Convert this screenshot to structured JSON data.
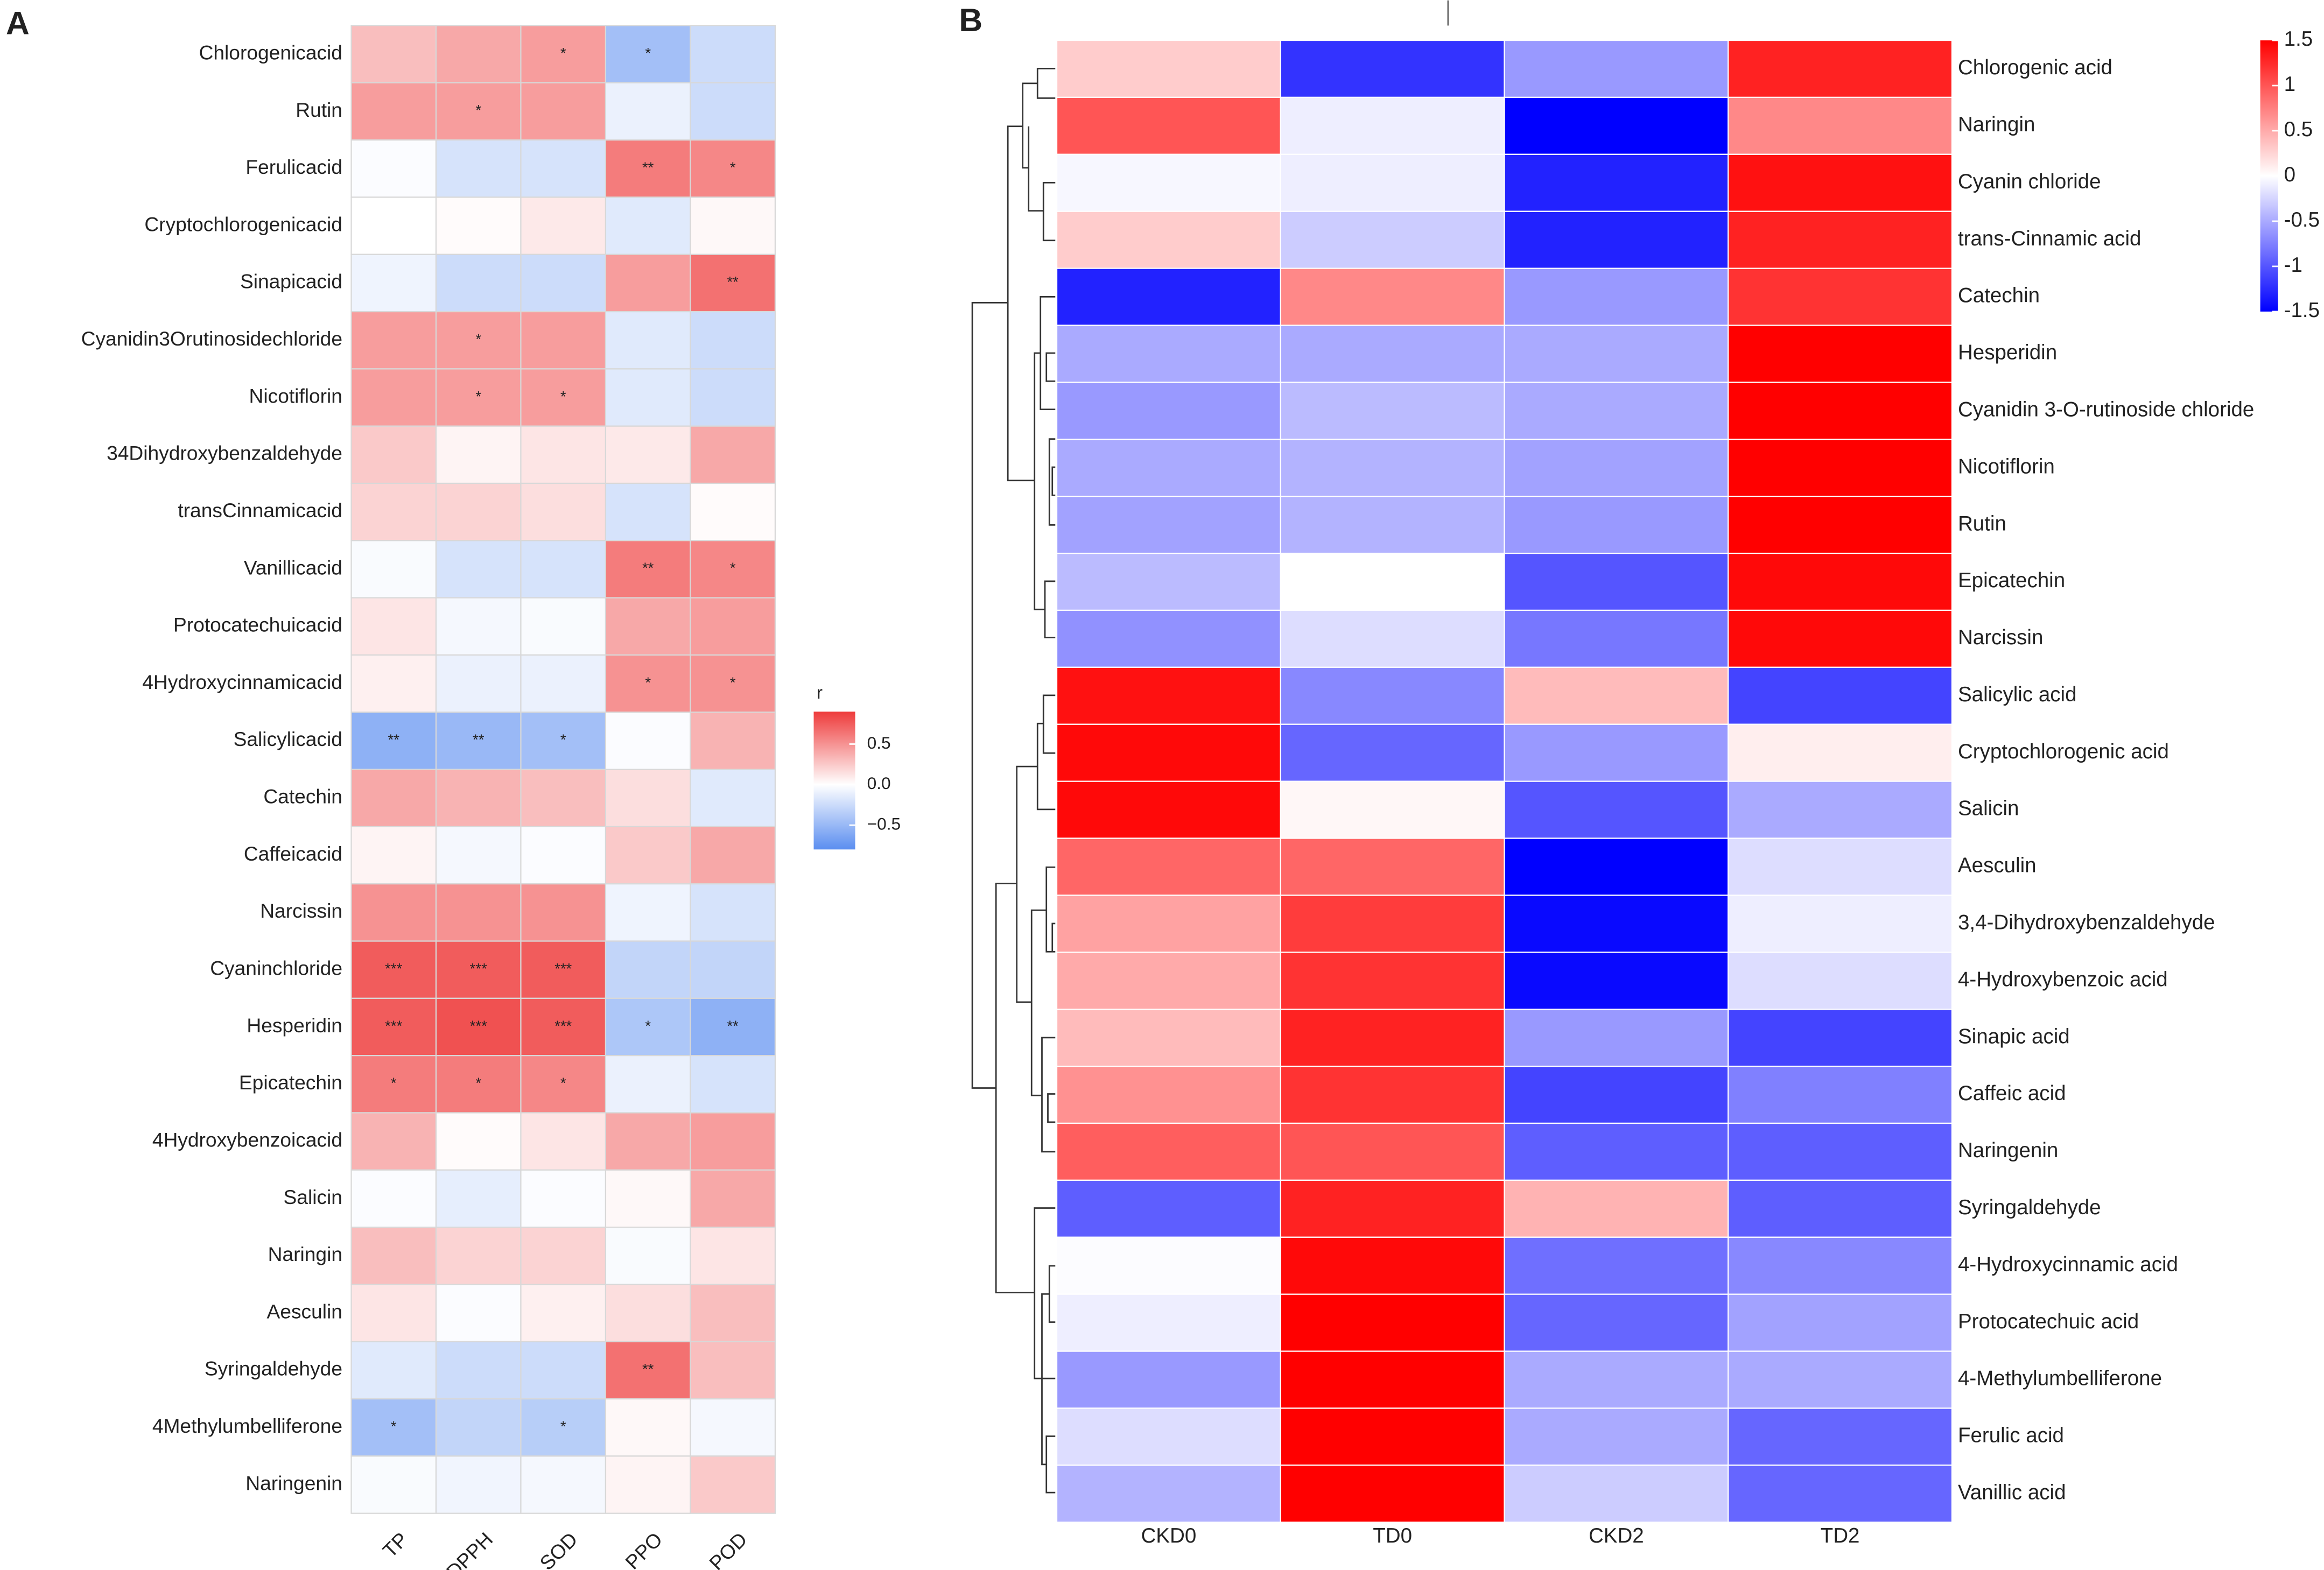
{
  "chart_data": [
    {
      "type": "heatmap",
      "panel": "A",
      "columns": [
        "TP",
        "DPPH",
        "SOD",
        "PPO",
        "POD"
      ],
      "rows": [
        "Chlorogenicacid",
        "Rutin",
        "Ferulicacid",
        "Cryptochlorogenicacid",
        "Sinapicacid",
        "Cyanidin3Orutinosidechloride",
        "Nicotiflorin",
        "34Dihydroxybenzaldehyde",
        "transCinnamicacid",
        "Vanillicacid",
        "Protocatechuicacid",
        "4Hydroxycinnamicacid",
        "Salicylicacid",
        "Catechin",
        "Caffeicacid",
        "Narcissin",
        "Cyaninchloride",
        "Hesperidin",
        "Epicatechin",
        "4Hydroxybenzoicacid",
        "Salicin",
        "Naringin",
        "Aesculin",
        "Syringaldehyde",
        "4Methylumbelliferone",
        "Naringenin"
      ],
      "values": [
        [
          0.3,
          0.4,
          0.45,
          -0.45,
          -0.25
        ],
        [
          0.45,
          0.45,
          0.45,
          -0.1,
          -0.25
        ],
        [
          -0.02,
          -0.2,
          -0.2,
          0.6,
          0.55
        ],
        [
          0,
          0.02,
          0.1,
          -0.15,
          0.03
        ],
        [
          -0.08,
          -0.25,
          -0.25,
          0.45,
          0.65
        ],
        [
          0.45,
          0.45,
          0.45,
          -0.15,
          -0.25
        ],
        [
          0.45,
          0.45,
          0.45,
          -0.15,
          -0.25
        ],
        [
          0.25,
          0.05,
          0.12,
          0.1,
          0.4
        ],
        [
          0.2,
          0.2,
          0.15,
          -0.2,
          0.02
        ],
        [
          -0.03,
          -0.2,
          -0.2,
          0.6,
          0.55
        ],
        [
          0.12,
          -0.05,
          -0.03,
          0.4,
          0.45
        ],
        [
          0.07,
          -0.1,
          -0.1,
          0.5,
          0.5
        ],
        [
          -0.55,
          -0.5,
          -0.45,
          -0.02,
          0.35
        ],
        [
          0.4,
          0.35,
          0.3,
          0.15,
          -0.15
        ],
        [
          0.05,
          -0.05,
          -0.02,
          0.25,
          0.4
        ],
        [
          0.5,
          0.5,
          0.5,
          -0.08,
          -0.2
        ],
        [
          0.75,
          0.75,
          0.75,
          -0.3,
          -0.3
        ],
        [
          0.75,
          0.8,
          0.75,
          -0.4,
          -0.55
        ],
        [
          0.6,
          0.6,
          0.55,
          -0.1,
          -0.2
        ],
        [
          0.35,
          0.02,
          0.12,
          0.4,
          0.45
        ],
        [
          -0.02,
          -0.12,
          -0.02,
          0.03,
          0.4
        ],
        [
          0.3,
          0.2,
          0.2,
          -0.03,
          0.12
        ],
        [
          0.12,
          -0.02,
          0.07,
          0.15,
          0.3
        ],
        [
          -0.15,
          -0.25,
          -0.25,
          0.65,
          0.3
        ],
        [
          -0.45,
          -0.3,
          -0.35,
          0.03,
          -0.05
        ],
        [
          -0.03,
          -0.07,
          -0.05,
          0.05,
          0.25
        ]
      ],
      "stars": [
        [
          null,
          null,
          "*",
          "*",
          null
        ],
        [
          null,
          "*",
          null,
          null,
          null
        ],
        [
          null,
          null,
          null,
          "**",
          "*"
        ],
        [
          null,
          null,
          null,
          null,
          null
        ],
        [
          null,
          null,
          null,
          null,
          "**"
        ],
        [
          null,
          "*",
          null,
          null,
          null
        ],
        [
          null,
          "*",
          "*",
          null,
          null
        ],
        [
          null,
          null,
          null,
          null,
          null
        ],
        [
          null,
          null,
          null,
          null,
          null
        ],
        [
          null,
          null,
          null,
          "**",
          "*"
        ],
        [
          null,
          null,
          null,
          null,
          null
        ],
        [
          null,
          null,
          null,
          "*",
          "*"
        ],
        [
          "**",
          "**",
          "*",
          null,
          null
        ],
        [
          null,
          null,
          null,
          null,
          null
        ],
        [
          null,
          null,
          null,
          null,
          null
        ],
        [
          null,
          null,
          null,
          null,
          null
        ],
        [
          "***",
          "***",
          "***",
          null,
          null
        ],
        [
          "***",
          "***",
          "***",
          "*",
          "**"
        ],
        [
          "*",
          "*",
          "*",
          null,
          null
        ],
        [
          null,
          null,
          null,
          null,
          null
        ],
        [
          null,
          null,
          null,
          null,
          null
        ],
        [
          null,
          null,
          null,
          null,
          null
        ],
        [
          null,
          null,
          null,
          null,
          null
        ],
        [
          null,
          null,
          null,
          "**",
          null
        ],
        [
          "*",
          null,
          "*",
          null,
          null
        ],
        [
          null,
          null,
          null,
          null,
          null
        ]
      ],
      "colors": {
        "low": "#5b8ef0",
        "mid": "#ffffff",
        "high": "#ee3b3b"
      },
      "zlim": [
        -0.8,
        0.9
      ],
      "colorbar_title": "r",
      "colorbar_ticks": [
        0.5,
        {
          "value": 0,
          "label": "0.0"
        },
        {
          "value": -0.5,
          "label": "−0.5"
        }
      ]
    },
    {
      "type": "heatmap",
      "panel": "B",
      "columns": [
        "CKD0",
        "TD0",
        "CKD2",
        "TD2"
      ],
      "rows": [
        "Chlorogenic acid",
        "Naringin",
        "Cyanin chloride",
        "trans-Cinnamic acid",
        "Catechin",
        "Hesperidin",
        "Cyanidin 3-O-rutinoside chloride",
        "Nicotiflorin",
        "Rutin",
        "Epicatechin",
        "Narcissin",
        "Salicylic acid",
        "Cryptochlorogenic acid",
        "Salicin",
        "Aesculin",
        "3,4-Dihydroxybenzaldehyde",
        "4-Hydroxybenzoic acid",
        "Sinapic acid",
        "Caffeic acid",
        "Naringenin",
        "Syringaldehyde",
        "4-Hydroxycinnamic acid",
        "Protocatechuic acid",
        "4-Methylumbelliferone",
        "Ferulic acid",
        "Vanillic acid"
      ],
      "values": [
        [
          0.3,
          -1.2,
          -0.6,
          1.3
        ],
        [
          1.0,
          -0.1,
          -1.5,
          0.7
        ],
        [
          -0.05,
          -0.1,
          -1.3,
          1.4
        ],
        [
          0.3,
          -0.3,
          -1.3,
          1.3
        ],
        [
          -1.3,
          0.7,
          -0.6,
          1.2
        ],
        [
          -0.5,
          -0.5,
          -0.5,
          1.5
        ],
        [
          -0.6,
          -0.4,
          -0.5,
          1.5
        ],
        [
          -0.5,
          -0.45,
          -0.55,
          1.5
        ],
        [
          -0.55,
          -0.45,
          -0.6,
          1.5
        ],
        [
          -0.4,
          0,
          -1.0,
          1.45
        ],
        [
          -0.65,
          -0.2,
          -0.8,
          1.45
        ],
        [
          1.4,
          -0.7,
          0.4,
          -1.1
        ],
        [
          1.45,
          -0.9,
          -0.6,
          0.1
        ],
        [
          1.45,
          0.05,
          -1.0,
          -0.5
        ],
        [
          0.9,
          0.9,
          -1.5,
          -0.2
        ],
        [
          0.55,
          1.15,
          -1.45,
          -0.1
        ],
        [
          0.5,
          1.2,
          -1.45,
          -0.2
        ],
        [
          0.4,
          1.3,
          -0.6,
          -1.1
        ],
        [
          0.65,
          1.2,
          -1.1,
          -0.75
        ],
        [
          0.95,
          1.0,
          -0.95,
          -0.95
        ],
        [
          -0.95,
          1.3,
          0.45,
          -0.95
        ],
        [
          -0.02,
          1.45,
          -0.85,
          -0.7
        ],
        [
          -0.1,
          1.5,
          -0.9,
          -0.55
        ],
        [
          -0.6,
          1.5,
          -0.5,
          -0.5
        ],
        [
          -0.2,
          1.5,
          -0.5,
          -0.9
        ],
        [
          -0.45,
          1.5,
          -0.3,
          -0.9
        ]
      ],
      "colors": {
        "low": "#0000ff",
        "mid": "#ffffff",
        "high": "#ff0000"
      },
      "zlim": [
        -1.5,
        1.5
      ],
      "colorbar_ticks": [
        1.5,
        1,
        0.5,
        0,
        -0.5,
        -1,
        -1.5
      ]
    }
  ]
}
